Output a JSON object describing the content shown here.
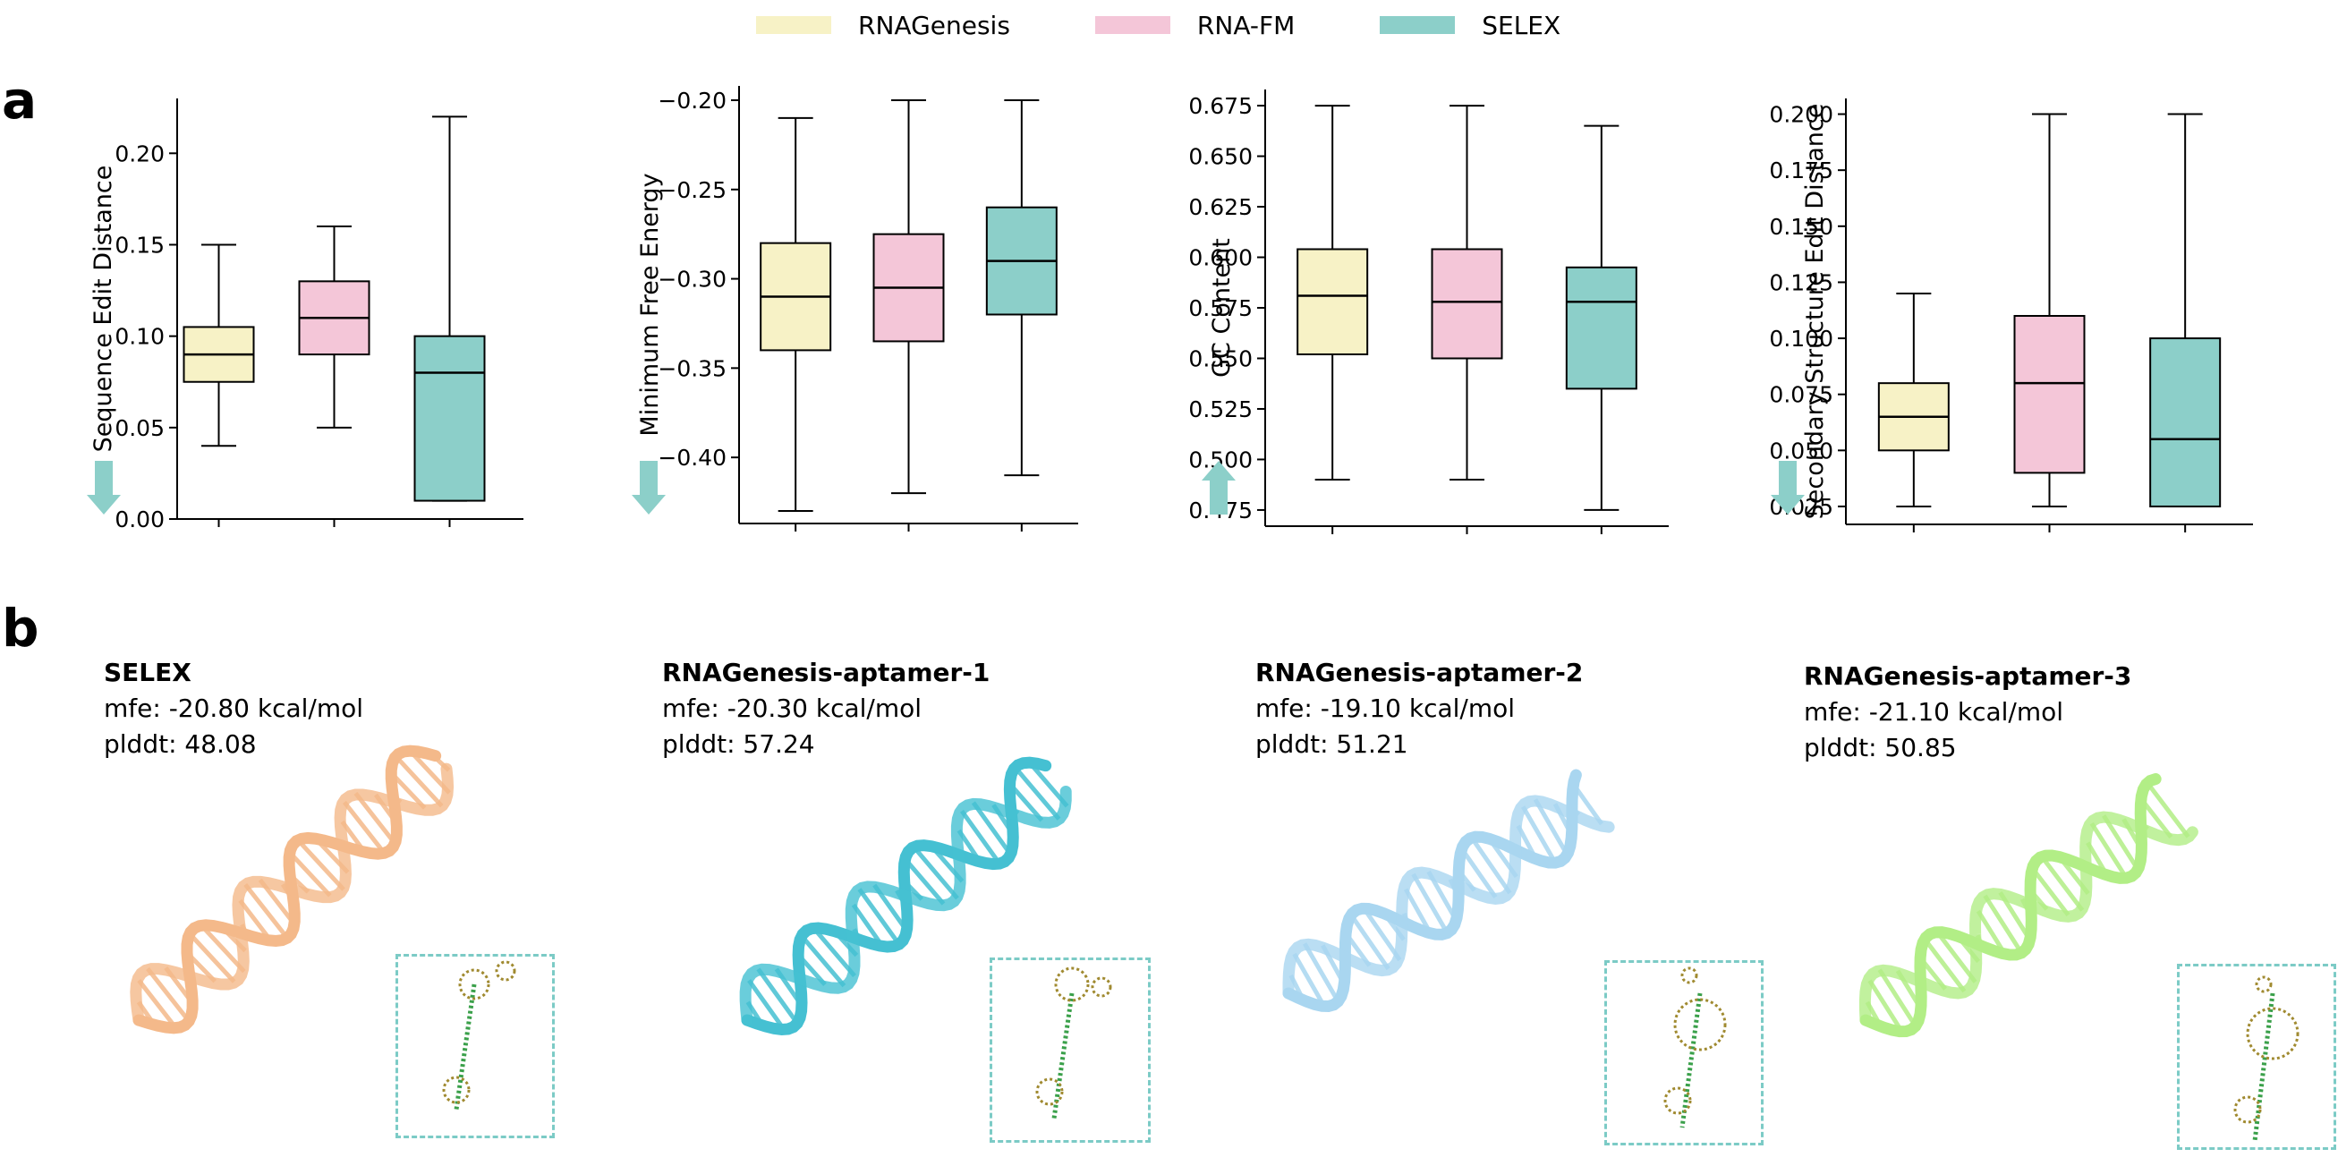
{
  "panel_labels": {
    "a": "a",
    "b": "b"
  },
  "legend": [
    {
      "label": "RNAGenesis",
      "color": "#f7f2c6"
    },
    {
      "label": "RNA-FM",
      "color": "#f4c6d8"
    },
    {
      "label": "SELEX",
      "color": "#8ccfc9"
    }
  ],
  "chart_data": [
    {
      "type": "box",
      "ylabel": "Sequence Edit Distance",
      "ylim": [
        0.0,
        0.23
      ],
      "ticks": [
        0.0,
        0.05,
        0.1,
        0.15,
        0.2
      ],
      "tick_labels": [
        "0.00",
        "0.05",
        "0.10",
        "0.15",
        "0.20"
      ],
      "arrow": "down",
      "boxes": [
        {
          "name": "RNAGenesis",
          "min": 0.04,
          "q1": 0.075,
          "median": 0.09,
          "q3": 0.105,
          "max": 0.15
        },
        {
          "name": "RNA-FM",
          "min": 0.05,
          "q1": 0.09,
          "median": 0.11,
          "q3": 0.13,
          "max": 0.16
        },
        {
          "name": "SELEX",
          "min": 0.01,
          "q1": 0.01,
          "median": 0.08,
          "q3": 0.1,
          "max": 0.22
        }
      ]
    },
    {
      "type": "box",
      "ylabel": "Minimum Free Energy",
      "ylim": [
        -0.437,
        -0.192
      ],
      "ticks": [
        -0.4,
        -0.35,
        -0.3,
        -0.25,
        -0.2
      ],
      "tick_labels": [
        "−0.40",
        "−0.35",
        "−0.30",
        "−0.25",
        "−0.20"
      ],
      "arrow": "down",
      "boxes": [
        {
          "name": "RNAGenesis",
          "min": -0.43,
          "q1": -0.34,
          "median": -0.31,
          "q3": -0.28,
          "max": -0.21
        },
        {
          "name": "RNA-FM",
          "min": -0.42,
          "q1": -0.335,
          "median": -0.305,
          "q3": -0.275,
          "max": -0.2
        },
        {
          "name": "SELEX",
          "min": -0.41,
          "q1": -0.32,
          "median": -0.29,
          "q3": -0.26,
          "max": -0.2
        }
      ]
    },
    {
      "type": "box",
      "ylabel": "GC Content",
      "ylim": [
        0.467,
        0.683
      ],
      "ticks": [
        0.475,
        0.5,
        0.525,
        0.55,
        0.575,
        0.6,
        0.625,
        0.65,
        0.675
      ],
      "tick_labels": [
        "0.475",
        "0.500",
        "0.525",
        "0.550",
        "0.575",
        "0.600",
        "0.625",
        "0.650",
        "0.675"
      ],
      "arrow": "up",
      "boxes": [
        {
          "name": "RNAGenesis",
          "min": 0.49,
          "q1": 0.552,
          "median": 0.581,
          "q3": 0.604,
          "max": 0.675
        },
        {
          "name": "RNA-FM",
          "min": 0.49,
          "q1": 0.55,
          "median": 0.578,
          "q3": 0.604,
          "max": 0.675
        },
        {
          "name": "SELEX",
          "min": 0.475,
          "q1": 0.535,
          "median": 0.578,
          "q3": 0.595,
          "max": 0.665
        }
      ]
    },
    {
      "type": "box",
      "ylabel": "Secondary Structure Edit Distance",
      "ylim": [
        0.017,
        0.207
      ],
      "ticks": [
        0.025,
        0.05,
        0.075,
        0.1,
        0.125,
        0.15,
        0.175,
        0.2
      ],
      "tick_labels": [
        "0.025",
        "0.050",
        "0.075",
        "0.100",
        "0.125",
        "0.150",
        "0.175",
        "0.200"
      ],
      "arrow": "down",
      "boxes": [
        {
          "name": "RNAGenesis",
          "min": 0.025,
          "q1": 0.05,
          "median": 0.065,
          "q3": 0.08,
          "max": 0.12
        },
        {
          "name": "RNA-FM",
          "min": 0.025,
          "q1": 0.04,
          "median": 0.08,
          "q3": 0.11,
          "max": 0.2
        },
        {
          "name": "SELEX",
          "min": 0.025,
          "q1": 0.025,
          "median": 0.055,
          "q3": 0.1,
          "max": 0.2
        }
      ]
    }
  ],
  "structures": [
    {
      "title": "SELEX",
      "mfe": "mfe: -20.80 kcal/mol",
      "plddt": "plddt: 48.08",
      "color": "#f4b98a"
    },
    {
      "title": "RNAGenesis-aptamer-1",
      "mfe": "mfe: -20.30 kcal/mol",
      "plddt": "plddt: 57.24",
      "color": "#45c0d2"
    },
    {
      "title": "RNAGenesis-aptamer-2",
      "mfe": "mfe: -19.10 kcal/mol",
      "plddt": "plddt: 51.21",
      "color": "#a9d6f0"
    },
    {
      "title": "RNAGenesis-aptamer-3",
      "mfe": "mfe: -21.10 kcal/mol",
      "plddt": "plddt: 50.85",
      "color": "#b2ee86"
    }
  ]
}
